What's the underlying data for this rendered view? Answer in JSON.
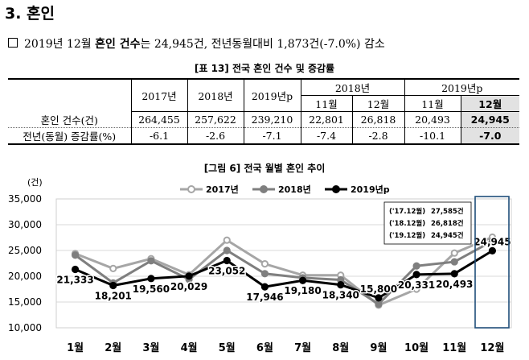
{
  "section_title": "3. 혼인",
  "summary": {
    "prefix": "2019년 12월",
    "highlight": "혼인 건수",
    "text": "는 24,945건, 전년동월대비 1,873건(-7.0%)  감소"
  },
  "table": {
    "caption": "[표 13] 전국 혼인 건수 및 증감률",
    "headers": {
      "years": [
        "2017년",
        "2018년",
        "2019년p"
      ],
      "group_2018": "2018년",
      "group_2019": "2019년p",
      "months": [
        "11월",
        "12월",
        "11월",
        "12월"
      ]
    },
    "rows": [
      {
        "label": "혼인 건수(건)",
        "values": [
          "264,455",
          "257,622",
          "239,210",
          "22,801",
          "26,818",
          "20,493",
          "24,945"
        ]
      },
      {
        "label": "전년(동월) 증감률(%)",
        "values": [
          "-6.1",
          "-2.6",
          "-7.1",
          "-7.4",
          "-2.8",
          "-10.1",
          "-7.0"
        ]
      }
    ]
  },
  "figure": {
    "caption": "[그림 6] 전국 월별 혼인 추이"
  },
  "chart_data": {
    "type": "line",
    "ylabel": "(건)",
    "ylim": [
      10000,
      35000
    ],
    "yticks": [
      "10,000",
      "15,000",
      "20,000",
      "25,000",
      "30,000",
      "35,000"
    ],
    "categories": [
      "1월",
      "2월",
      "3월",
      "4월",
      "5월",
      "6월",
      "7월",
      "8월",
      "9월",
      "10월",
      "11월",
      "12월"
    ],
    "legend_position": "top",
    "series": [
      {
        "name": "2017년",
        "color": "#a6a6a6",
        "values": [
          24400,
          21500,
          23400,
          20300,
          27000,
          22400,
          20200,
          20200,
          14400,
          17500,
          24500,
          27585
        ]
      },
      {
        "name": "2018년",
        "color": "#7f7f7f",
        "values": [
          24100,
          18700,
          23000,
          19400,
          25000,
          20500,
          19700,
          19300,
          14600,
          22000,
          22801,
          26818
        ]
      },
      {
        "name": "2019년p",
        "color": "#000000",
        "values": [
          21333,
          18201,
          19560,
          20029,
          23052,
          17946,
          19180,
          18340,
          15800,
          20331,
          20493,
          24945
        ]
      }
    ],
    "data_labels": [
      "21,333",
      "18,201",
      "19,560",
      "20,029",
      "23,052",
      "17,946",
      "19,180",
      "18,340",
      "15,800",
      "20,331",
      "20,493",
      "24,945"
    ],
    "annotation_box": [
      {
        "period": "('17.12월)",
        "value": "27,585건"
      },
      {
        "period": "('18.12월)",
        "value": "26,818건"
      },
      {
        "period": "('19.12월)",
        "value": "24,945건"
      }
    ],
    "highlight_category": "12월",
    "grid": true
  }
}
